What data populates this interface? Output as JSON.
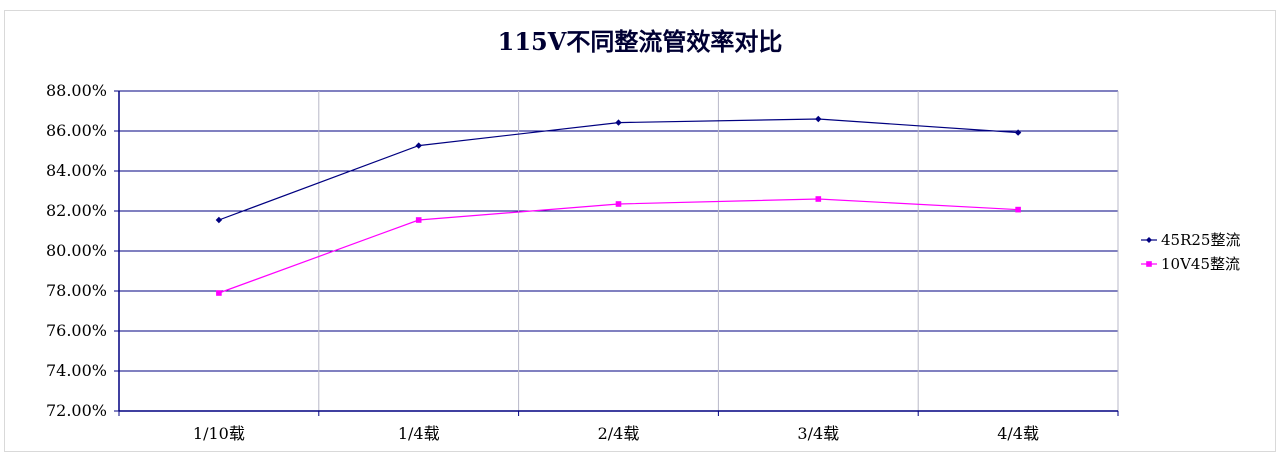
{
  "chart_data": {
    "type": "line",
    "title": "115V不同整流管效率对比",
    "xlabel": "",
    "ylabel": "",
    "categories": [
      "1/10载",
      "1/4载",
      "2/4载",
      "3/4载",
      "4/4载"
    ],
    "ylim": [
      72.0,
      88.0
    ],
    "yticks": [
      "72.00%",
      "74.00%",
      "76.00%",
      "78.00%",
      "80.00%",
      "82.00%",
      "84.00%",
      "86.00%",
      "88.00%"
    ],
    "ytick_values": [
      72,
      74,
      76,
      78,
      80,
      82,
      84,
      86,
      88
    ],
    "grid": true,
    "legend_position": "right",
    "series": [
      {
        "name": "45R25整流",
        "values": [
          81.55,
          85.27,
          86.42,
          86.6,
          85.92
        ],
        "color": "#000080",
        "marker": "diamond"
      },
      {
        "name": "10V45整流",
        "values": [
          77.9,
          81.55,
          82.35,
          82.6,
          82.07
        ],
        "color": "#ff00ff",
        "marker": "square"
      }
    ]
  }
}
